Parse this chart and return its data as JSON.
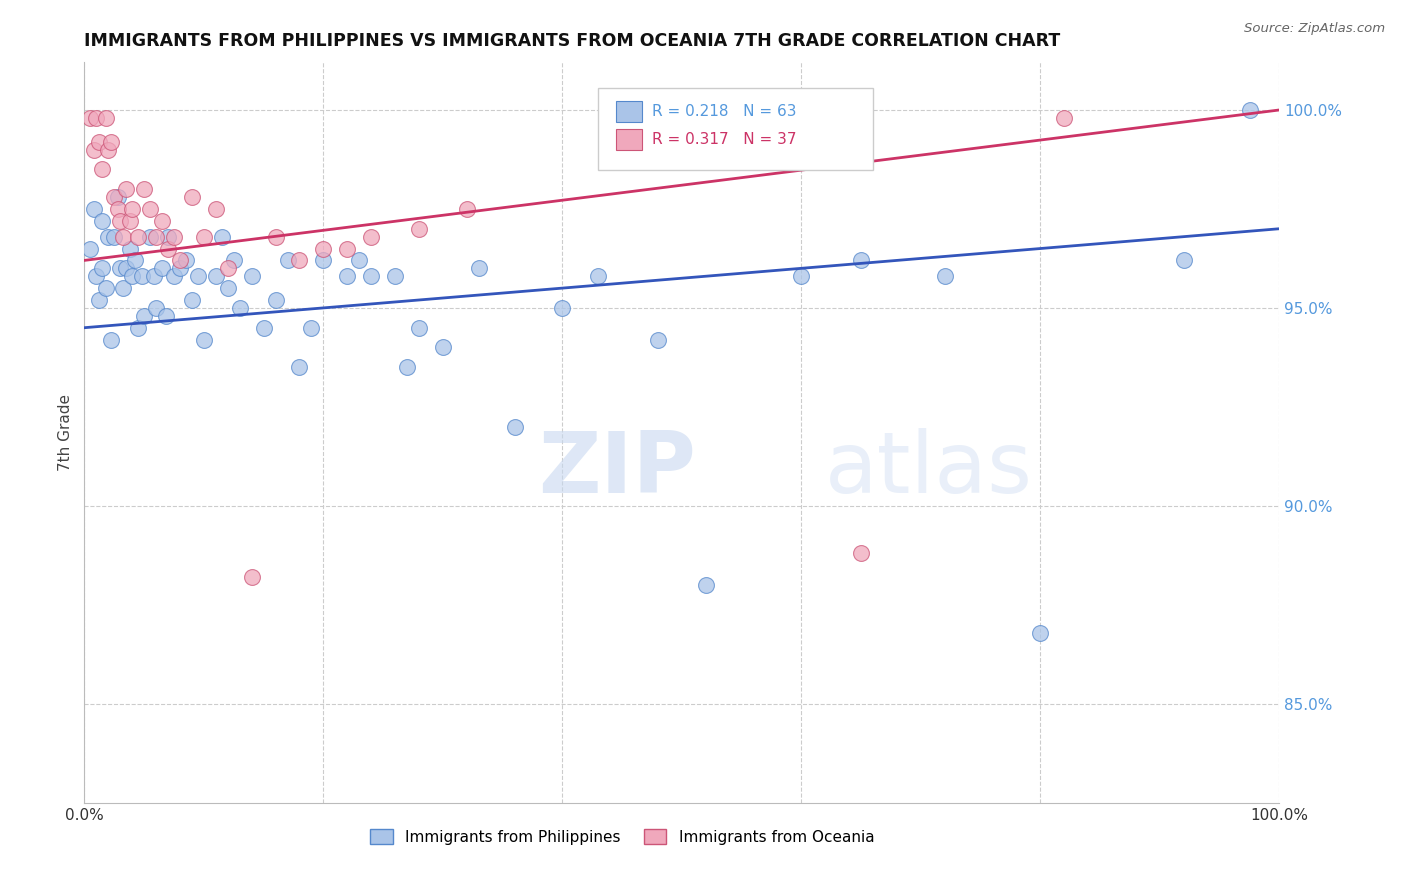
{
  "title": "IMMIGRANTS FROM PHILIPPINES VS IMMIGRANTS FROM OCEANIA 7TH GRADE CORRELATION CHART",
  "source": "Source: ZipAtlas.com",
  "ylabel": "7th Grade",
  "r_blue": 0.218,
  "n_blue": 63,
  "r_pink": 0.317,
  "n_pink": 37,
  "blue_scatter_color": "#aac4e8",
  "blue_edge_color": "#5588cc",
  "pink_scatter_color": "#f0a8bc",
  "pink_edge_color": "#cc5577",
  "blue_line_color": "#3355bb",
  "pink_line_color": "#cc3366",
  "right_axis_color": "#5599dd",
  "title_color": "#111111",
  "watermark_color": "#d0e4f8",
  "xlim": [
    0.0,
    1.0
  ],
  "ylim": [
    0.825,
    1.012
  ],
  "right_yticks": [
    0.85,
    0.9,
    0.95,
    1.0
  ],
  "right_yticklabels": [
    "85.0%",
    "90.0%",
    "95.0%",
    "100.0%"
  ],
  "xticks": [
    0.0,
    0.2,
    0.4,
    0.6,
    0.8,
    1.0
  ],
  "blue_x": [
    0.005,
    0.008,
    0.01,
    0.012,
    0.015,
    0.015,
    0.018,
    0.02,
    0.022,
    0.025,
    0.028,
    0.03,
    0.032,
    0.035,
    0.038,
    0.04,
    0.042,
    0.045,
    0.048,
    0.05,
    0.055,
    0.058,
    0.06,
    0.065,
    0.068,
    0.07,
    0.075,
    0.08,
    0.085,
    0.09,
    0.095,
    0.1,
    0.11,
    0.115,
    0.12,
    0.125,
    0.13,
    0.14,
    0.15,
    0.16,
    0.17,
    0.18,
    0.19,
    0.2,
    0.22,
    0.23,
    0.24,
    0.26,
    0.27,
    0.28,
    0.3,
    0.33,
    0.36,
    0.4,
    0.43,
    0.48,
    0.52,
    0.6,
    0.65,
    0.72,
    0.8,
    0.92,
    0.975
  ],
  "blue_y": [
    0.965,
    0.975,
    0.958,
    0.952,
    0.972,
    0.96,
    0.955,
    0.968,
    0.942,
    0.968,
    0.978,
    0.96,
    0.955,
    0.96,
    0.965,
    0.958,
    0.962,
    0.945,
    0.958,
    0.948,
    0.968,
    0.958,
    0.95,
    0.96,
    0.948,
    0.968,
    0.958,
    0.96,
    0.962,
    0.952,
    0.958,
    0.942,
    0.958,
    0.968,
    0.955,
    0.962,
    0.95,
    0.958,
    0.945,
    0.952,
    0.962,
    0.935,
    0.945,
    0.962,
    0.958,
    0.962,
    0.958,
    0.958,
    0.935,
    0.945,
    0.94,
    0.96,
    0.92,
    0.95,
    0.958,
    0.942,
    0.88,
    0.958,
    0.962,
    0.958,
    0.868,
    0.962,
    1.0
  ],
  "pink_x": [
    0.005,
    0.008,
    0.01,
    0.012,
    0.015,
    0.018,
    0.02,
    0.022,
    0.025,
    0.028,
    0.03,
    0.032,
    0.035,
    0.038,
    0.04,
    0.045,
    0.05,
    0.055,
    0.06,
    0.065,
    0.07,
    0.075,
    0.08,
    0.09,
    0.1,
    0.11,
    0.12,
    0.14,
    0.16,
    0.18,
    0.2,
    0.22,
    0.24,
    0.28,
    0.32,
    0.65,
    0.82
  ],
  "pink_y": [
    0.998,
    0.99,
    0.998,
    0.992,
    0.985,
    0.998,
    0.99,
    0.992,
    0.978,
    0.975,
    0.972,
    0.968,
    0.98,
    0.972,
    0.975,
    0.968,
    0.98,
    0.975,
    0.968,
    0.972,
    0.965,
    0.968,
    0.962,
    0.978,
    0.968,
    0.975,
    0.96,
    0.882,
    0.968,
    0.962,
    0.965,
    0.965,
    0.968,
    0.97,
    0.975,
    0.888,
    0.998
  ]
}
